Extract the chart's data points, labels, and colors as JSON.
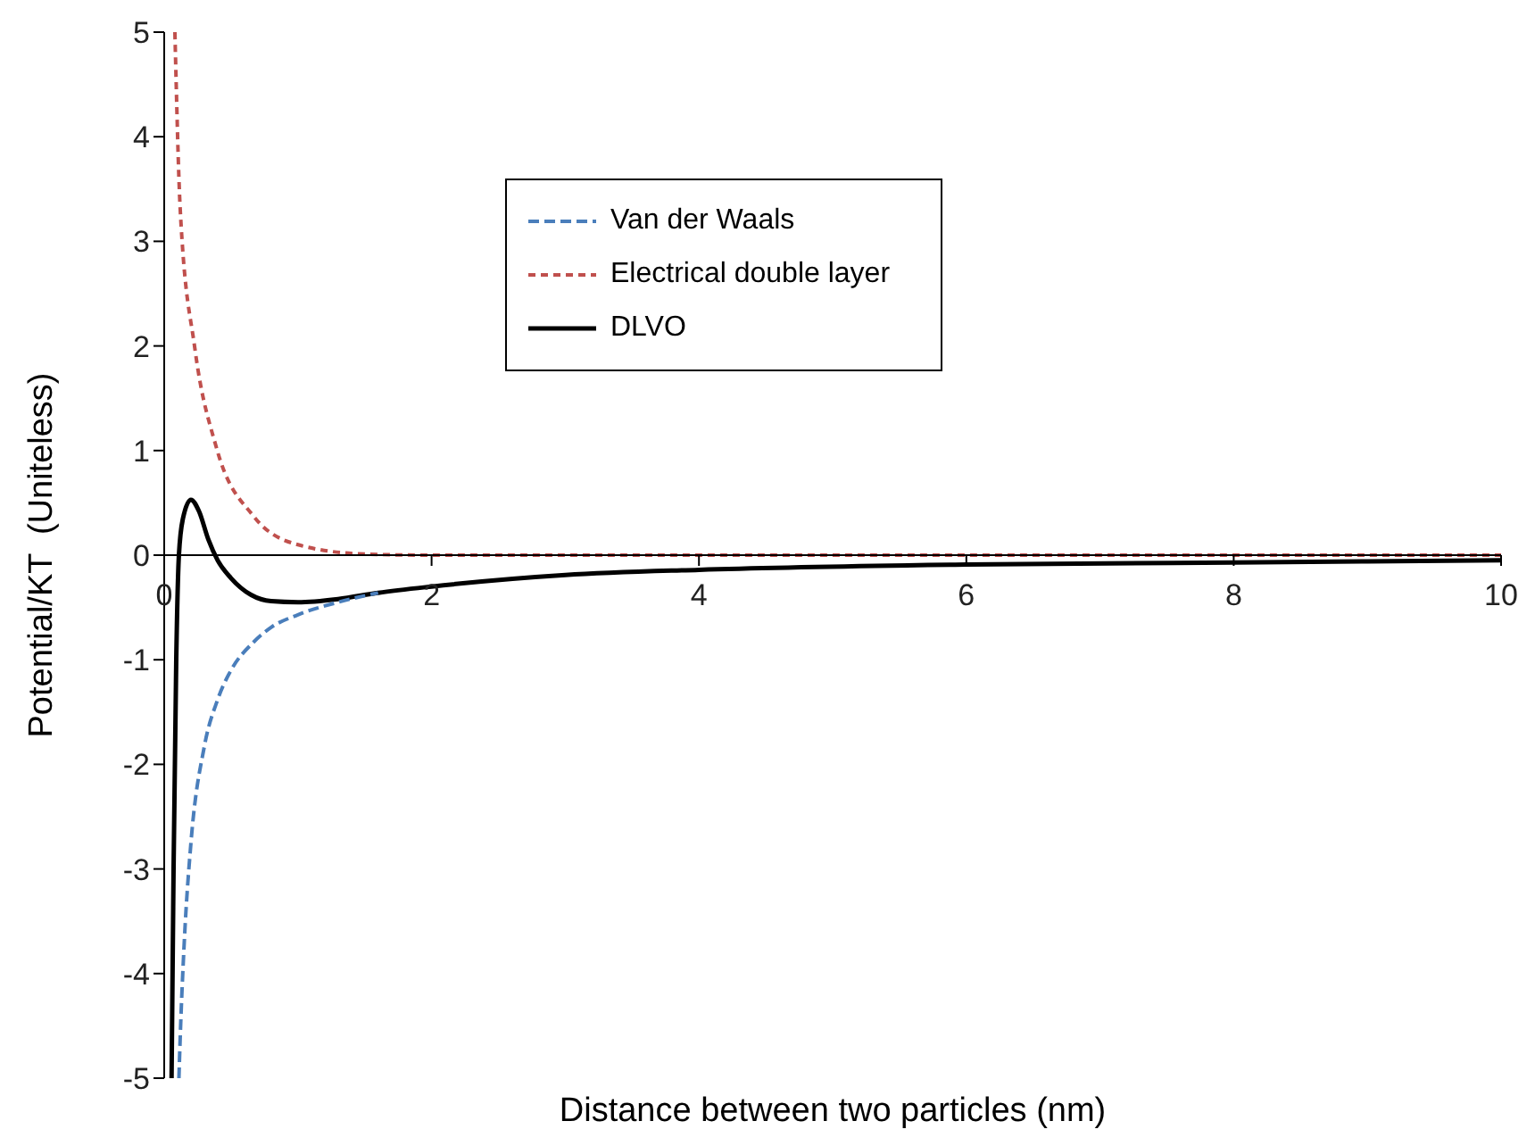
{
  "chart_data": {
    "type": "line",
    "xlabel": "Distance between two particles (nm)",
    "ylabel": "Potential/KT  (Uniteless)",
    "xlim": [
      0,
      10
    ],
    "ylim": [
      -5,
      5
    ],
    "xticks": [
      0,
      2,
      4,
      6,
      8,
      10
    ],
    "yticks": [
      -5,
      -4,
      -3,
      -2,
      -1,
      0,
      1,
      2,
      3,
      4,
      5
    ],
    "grid": false,
    "legend": "top",
    "marker": "none",
    "series": [
      {
        "name": "Van der Waals",
        "color": "#4a7ebb",
        "line_style": "dashed",
        "x": [
          0.11,
          0.12,
          0.15,
          0.2,
          0.3,
          0.4,
          0.5,
          0.67,
          0.8,
          1.0,
          1.3,
          1.6
        ],
        "values": [
          -5,
          -4.6,
          -3.7,
          -2.75,
          -1.83,
          -1.38,
          -1.1,
          -0.83,
          -0.69,
          -0.57,
          -0.45,
          -0.36
        ]
      },
      {
        "name": "Electrical double layer",
        "color": "#c0504d",
        "line_style": "dotted",
        "x": [
          0.08,
          0.12,
          0.23,
          0.39,
          0.67,
          1.0,
          1.5,
          2,
          4,
          6,
          8,
          10
        ],
        "values": [
          5,
          3.3,
          1.97,
          1.03,
          0.37,
          0.1,
          0.01,
          0,
          0,
          0,
          0,
          0
        ]
      },
      {
        "name": "DLVO",
        "color": "#000000",
        "line_style": "solid",
        "x": [
          0.055,
          0.07,
          0.09,
          0.11,
          0.14,
          0.2,
          0.26,
          0.33,
          0.4,
          0.5,
          0.65,
          0.8,
          1.0,
          1.3,
          1.6,
          2,
          3,
          4,
          6,
          8,
          10
        ],
        "values": [
          -5,
          -3,
          -1,
          0,
          0.35,
          0.53,
          0.42,
          0.15,
          -0.05,
          -0.22,
          -0.38,
          -0.44,
          -0.45,
          -0.42,
          -0.36,
          -0.3,
          -0.19,
          -0.14,
          -0.09,
          -0.07,
          -0.05
        ]
      }
    ]
  }
}
